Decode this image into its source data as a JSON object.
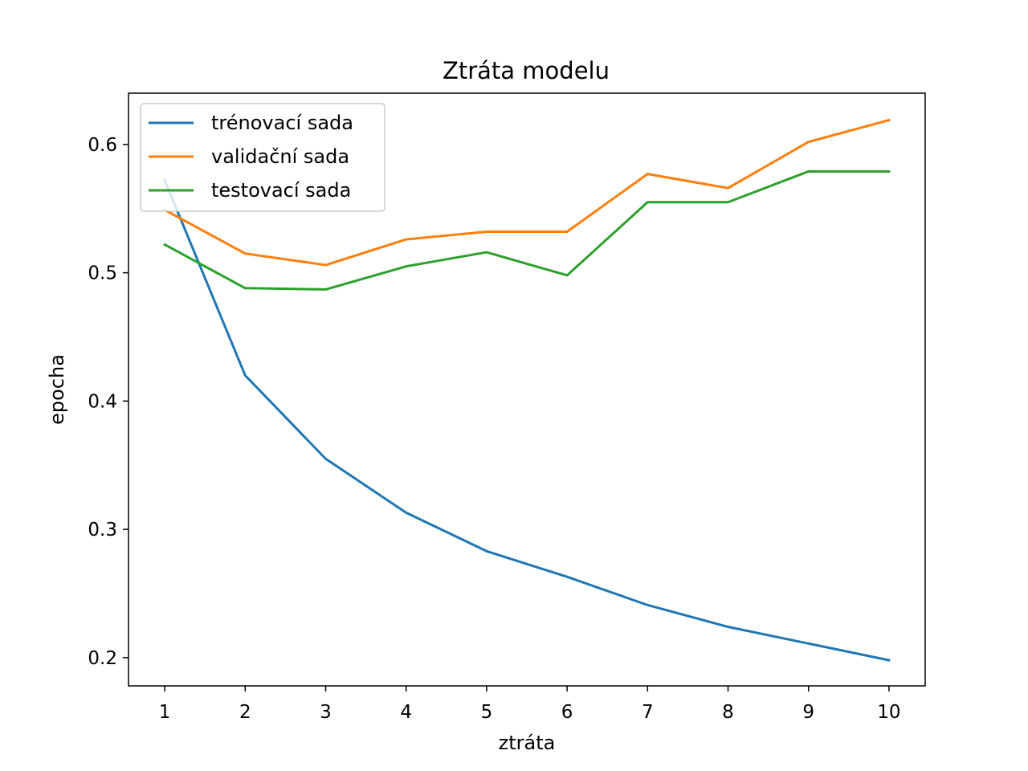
{
  "chart_data": {
    "type": "line",
    "title": "Ztráta modelu",
    "xlabel": "ztráta",
    "ylabel": "epocha",
    "x": [
      1,
      2,
      3,
      4,
      5,
      6,
      7,
      8,
      9,
      10
    ],
    "xticks": [
      "1",
      "2",
      "3",
      "4",
      "5",
      "6",
      "7",
      "8",
      "9",
      "10"
    ],
    "yticks": [
      "0.2",
      "0.3",
      "0.4",
      "0.5",
      "0.6"
    ],
    "xlim": [
      0.55,
      10.45
    ],
    "ylim": [
      0.178,
      0.64
    ],
    "grid": false,
    "legend_position": "top-left",
    "series": [
      {
        "name": "trénovací sada",
        "color": "#1f77b4",
        "values": [
          0.572,
          0.42,
          0.355,
          0.313,
          0.283,
          0.263,
          0.241,
          0.224,
          0.211,
          0.198
        ]
      },
      {
        "name": "validační sada",
        "color": "#ff7f0e",
        "values": [
          0.549,
          0.515,
          0.506,
          0.526,
          0.532,
          0.532,
          0.577,
          0.566,
          0.602,
          0.619
        ]
      },
      {
        "name": "testovací sada",
        "color": "#2ca02c",
        "values": [
          0.522,
          0.488,
          0.487,
          0.505,
          0.516,
          0.498,
          0.555,
          0.555,
          0.579,
          0.579
        ]
      }
    ]
  }
}
